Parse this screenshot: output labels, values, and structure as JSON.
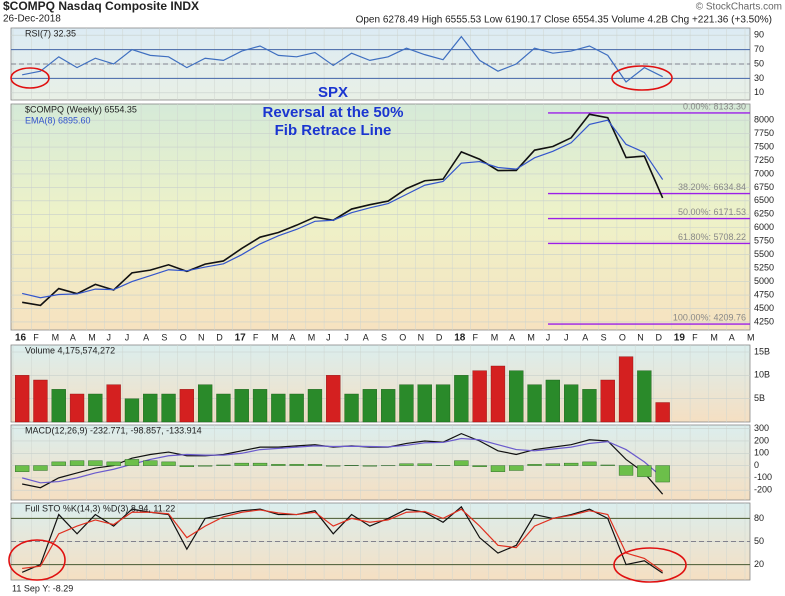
{
  "header": {
    "title": "$COMPQ Nasdaq Composite INDX",
    "date": "26-Dec-2018",
    "quote": "Open 6278.49 High 6555.53 Low 6190.17 Close 6554.35 Volume 4.2B Chg +221.36 (+3.50%)",
    "copyright": "© StockCharts.com",
    "footer": "11 Sep Y: -8.29"
  },
  "chart_data": [
    {
      "type": "line",
      "label": "RSI(7) 32.35",
      "ylim": [
        0,
        100
      ],
      "yticks": [
        90,
        70,
        50,
        30,
        10
      ],
      "levels": [
        70,
        30
      ],
      "mid": 50,
      "series": [
        {
          "name": "RSI(7)",
          "color": "#3f6fc0",
          "values": [
            35,
            40,
            60,
            45,
            58,
            50,
            70,
            62,
            60,
            45,
            58,
            55,
            68,
            75,
            62,
            60,
            66,
            48,
            65,
            55,
            60,
            72,
            63,
            56,
            88,
            55,
            40,
            50,
            72,
            65,
            68,
            75,
            62,
            25,
            45,
            32.35,
            null,
            null,
            null,
            null,
            null
          ]
        }
      ]
    },
    {
      "type": "line",
      "label": "$COMPQ (Weekly) 6554.35",
      "ylim": [
        4100,
        8300
      ],
      "yticks": [
        4250,
        4500,
        4750,
        5000,
        5250,
        5500,
        5750,
        6000,
        6250,
        6500,
        6750,
        7000,
        7250,
        7500,
        7750,
        8000
      ],
      "annotations": [
        "SPX",
        "Reversal at the 50%",
        "Fib Retrace Line"
      ],
      "fib": [
        {
          "value": 8133.3,
          "label": "0.00%: 8133.30"
        },
        {
          "value": 6634.84,
          "label": "38.20%: 6634.84"
        },
        {
          "value": 6171.53,
          "label": "50.00%: 6171.53"
        },
        {
          "value": 5708.22,
          "label": "61.80%: 5708.22"
        },
        {
          "value": 4209.76,
          "label": "100.00%: 4209.76"
        }
      ],
      "categories": [
        "16",
        "F",
        "M",
        "A",
        "M",
        "J",
        "J",
        "A",
        "S",
        "O",
        "N",
        "D",
        "17",
        "F",
        "M",
        "A",
        "M",
        "J",
        "J",
        "A",
        "S",
        "O",
        "N",
        "D",
        "18",
        "F",
        "M",
        "A",
        "M",
        "J",
        "J",
        "A",
        "S",
        "O",
        "N",
        "D",
        "19",
        "F",
        "M",
        "A",
        "M"
      ],
      "series": [
        {
          "name": "$COMPQ",
          "color": "#111111",
          "values": [
            4614,
            4558,
            4870,
            4775,
            4948,
            4843,
            5162,
            5213,
            5312,
            5189,
            5324,
            5383,
            5615,
            5825,
            5912,
            6048,
            6199,
            6140,
            6348,
            6429,
            6496,
            6728,
            6874,
            6903,
            7411,
            7273,
            7063,
            7066,
            7442,
            7510,
            7672,
            8109,
            8046,
            7305,
            7331,
            6554.35,
            null,
            null,
            null,
            null,
            null
          ]
        },
        {
          "name": "EMA(8) 6895.60",
          "color": "#3355cc",
          "values": [
            4780,
            4700,
            4760,
            4770,
            4860,
            4850,
            5000,
            5110,
            5220,
            5200,
            5270,
            5330,
            5500,
            5700,
            5850,
            5970,
            6120,
            6140,
            6280,
            6370,
            6450,
            6620,
            6790,
            6860,
            7200,
            7230,
            7120,
            7090,
            7300,
            7420,
            7580,
            7920,
            8000,
            7550,
            7400,
            6895.6,
            null,
            null,
            null,
            null,
            null
          ]
        }
      ]
    },
    {
      "type": "bar",
      "label": "Volume 4,175,574,272",
      "ylim": [
        0,
        16.5
      ],
      "yticks": [
        {
          "value": 15,
          "label": "15B"
        },
        {
          "value": 10,
          "label": "10B"
        },
        {
          "value": 5,
          "label": "5B"
        }
      ],
      "series": [
        {
          "name": "Volume",
          "values": [
            10,
            9,
            7,
            6,
            6,
            8,
            5,
            6,
            6,
            7,
            8,
            6,
            7,
            7,
            6,
            6,
            7,
            10,
            6,
            7,
            7,
            8,
            8,
            8,
            10,
            11,
            12,
            11,
            8,
            9,
            8,
            7,
            9,
            14,
            11,
            4.175574272,
            null,
            null,
            null,
            null,
            null
          ],
          "colors": [
            "#d42020",
            "#d42020",
            "#2a8a2a",
            "#d42020",
            "#2a8a2a",
            "#d42020",
            "#2a8a2a",
            "#2a8a2a",
            "#2a8a2a",
            "#d42020",
            "#2a8a2a",
            "#2a8a2a",
            "#2a8a2a",
            "#2a8a2a",
            "#2a8a2a",
            "#2a8a2a",
            "#2a8a2a",
            "#d42020",
            "#2a8a2a",
            "#2a8a2a",
            "#2a8a2a",
            "#2a8a2a",
            "#2a8a2a",
            "#2a8a2a",
            "#2a8a2a",
            "#d42020",
            "#d42020",
            "#2a8a2a",
            "#2a8a2a",
            "#2a8a2a",
            "#2a8a2a",
            "#2a8a2a",
            "#d42020",
            "#d42020",
            "#2a8a2a",
            "#d42020",
            null,
            null,
            null,
            null,
            null
          ]
        }
      ]
    },
    {
      "type": "line",
      "label": "MACD(12,26,9) -232.771, -98.857, -133.914",
      "ylim": [
        -280,
        330
      ],
      "yticks": [
        300,
        200,
        100,
        0,
        -100,
        -200
      ],
      "series": [
        {
          "name": "MACD",
          "color": "#111111",
          "values": [
            -150,
            -180,
            -100,
            -60,
            -20,
            0,
            60,
            90,
            110,
            80,
            80,
            90,
            120,
            150,
            150,
            160,
            170,
            150,
            160,
            150,
            150,
            180,
            200,
            190,
            260,
            200,
            120,
            90,
            130,
            150,
            170,
            210,
            200,
            50,
            -60,
            -232.771,
            null,
            null,
            null,
            null,
            null
          ]
        },
        {
          "name": "Signal",
          "color": "#6a5acd",
          "values": [
            -100,
            -140,
            -130,
            -100,
            -60,
            -30,
            10,
            50,
            80,
            90,
            85,
            85,
            100,
            130,
            140,
            150,
            160,
            155,
            157,
            155,
            152,
            165,
            185,
            188,
            220,
            210,
            170,
            130,
            120,
            135,
            150,
            180,
            195,
            130,
            30,
            -98.857,
            null,
            null,
            null,
            null,
            null
          ]
        },
        {
          "name": "Histogram",
          "type": "bar",
          "color": "#6cbf4a",
          "values": [
            -50,
            -40,
            30,
            40,
            40,
            30,
            50,
            40,
            30,
            -10,
            -5,
            5,
            20,
            20,
            10,
            10,
            10,
            -5,
            3,
            -5,
            -2,
            15,
            15,
            2,
            40,
            -10,
            -50,
            -40,
            10,
            15,
            20,
            30,
            5,
            -80,
            -90,
            -133.914,
            null,
            null,
            null,
            null,
            null
          ]
        }
      ]
    },
    {
      "type": "line",
      "label": "Full STO %K(14,3) %D(3) 8.94, 11.22",
      "ylim": [
        0,
        100
      ],
      "yticks": [
        80,
        50,
        20
      ],
      "levels": [
        80,
        20
      ],
      "mid": 50,
      "series": [
        {
          "name": "%K",
          "color": "#111111",
          "values": [
            10,
            20,
            85,
            60,
            85,
            70,
            92,
            88,
            85,
            40,
            80,
            85,
            90,
            92,
            85,
            85,
            90,
            60,
            85,
            70,
            80,
            92,
            88,
            75,
            95,
            55,
            35,
            45,
            85,
            80,
            85,
            92,
            80,
            20,
            25,
            8.94,
            null,
            null,
            null,
            null,
            null
          ]
        },
        {
          "name": "%D",
          "color": "#e03020",
          "values": [
            15,
            18,
            60,
            70,
            78,
            72,
            88,
            88,
            86,
            55,
            70,
            82,
            88,
            91,
            87,
            85,
            88,
            70,
            80,
            75,
            78,
            88,
            89,
            80,
            92,
            70,
            45,
            42,
            70,
            80,
            84,
            90,
            85,
            35,
            28,
            11.22,
            null,
            null,
            null,
            null,
            null
          ]
        }
      ]
    }
  ]
}
